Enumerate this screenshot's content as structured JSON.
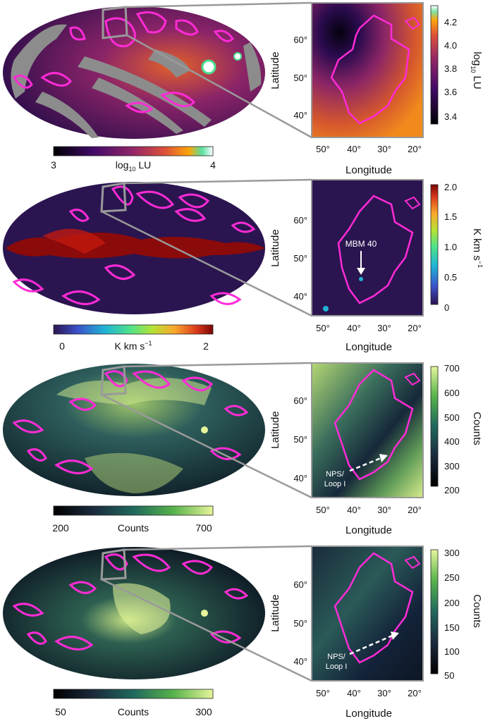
{
  "panels": [
    {
      "colorbar_bottom": {
        "min_label": "3",
        "max_label": "4",
        "label": "log10 LU",
        "label_base": "log",
        "label_sub": "10",
        "label_rest": " LU"
      },
      "colorbar_right": {
        "ticks": [
          "4.2",
          "4.0",
          "3.8",
          "3.6",
          "3.4"
        ],
        "label_base": "log",
        "label_sub": "10",
        "label_rest": " LU"
      },
      "zoom": {
        "y_ticks": [
          "60°",
          "50°",
          "40°"
        ],
        "x_ticks": [
          "50°",
          "40°",
          "30°",
          "20°"
        ],
        "xlabel": "Longitude",
        "ylabel": "Latitude",
        "annotations": []
      },
      "colormap": "inferno",
      "colors": {
        "sky": "#4a1a6b",
        "mask": "#8c8c8c",
        "contour": "#ff2bd6"
      }
    },
    {
      "colorbar_bottom": {
        "min_label": "0",
        "max_label": "2",
        "label_base": "K km s",
        "label_sup": "−1"
      },
      "colorbar_right": {
        "ticks": [
          "2.0",
          "1.5",
          "1.0",
          "0.5",
          "0"
        ],
        "label_base": "K km s",
        "label_sup": "−1"
      },
      "zoom": {
        "y_ticks": [
          "60°",
          "50°",
          "40°"
        ],
        "x_ticks": [
          "50°",
          "40°",
          "30°",
          "20°"
        ],
        "xlabel": "Longitude",
        "ylabel": "Latitude",
        "annotations": [
          "MBM 40"
        ]
      },
      "colormap": "turbo",
      "colors": {
        "sky": "#2b1550",
        "band": "#8b0a0a",
        "contour": "#ff2bd6"
      }
    },
    {
      "colorbar_bottom": {
        "min_label": "200",
        "max_label": "700",
        "label": "Counts"
      },
      "colorbar_right": {
        "ticks": [
          "700",
          "600",
          "500",
          "400",
          "300",
          "200"
        ],
        "label": "Counts"
      },
      "zoom": {
        "y_ticks": [
          "60°",
          "50°",
          "40°"
        ],
        "x_ticks": [
          "50°",
          "40°",
          "30°",
          "20°"
        ],
        "xlabel": "Longitude",
        "ylabel": "Latitude",
        "annotations": [
          "NPS/",
          "Loop I"
        ]
      },
      "colormap": "viridis-yellow",
      "colors": {
        "sky": "#1e3a4a",
        "bright": "#d9ef8c",
        "contour": "#ff2bd6"
      }
    },
    {
      "colorbar_bottom": {
        "min_label": "50",
        "max_label": "300",
        "label": "Counts"
      },
      "colorbar_right": {
        "ticks": [
          "300",
          "250",
          "200",
          "150",
          "100",
          "50"
        ],
        "label": "Counts"
      },
      "zoom": {
        "y_ticks": [
          "60°",
          "50°",
          "40°"
        ],
        "x_ticks": [
          "50°",
          "40°",
          "30°",
          "20°"
        ],
        "xlabel": "Longitude",
        "ylabel": "Latitude",
        "annotations": [
          "NPS/",
          "Loop I"
        ]
      },
      "colormap": "viridis-yellow",
      "colors": {
        "sky": "#141d2c",
        "bright": "#d9ef8c",
        "contour": "#ff2bd6"
      }
    }
  ]
}
